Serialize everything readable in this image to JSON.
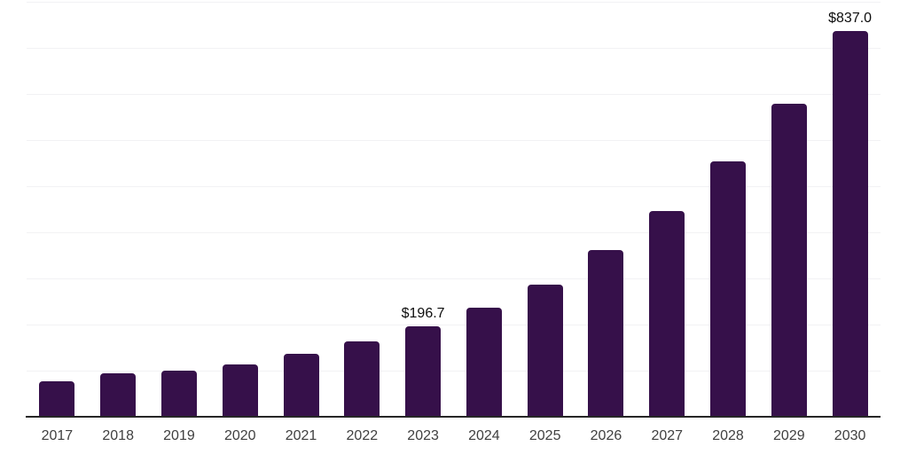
{
  "chart_data": {
    "type": "bar",
    "title": "",
    "xlabel": "",
    "ylabel": "",
    "categories": [
      "2017",
      "2018",
      "2019",
      "2020",
      "2021",
      "2022",
      "2023",
      "2024",
      "2025",
      "2026",
      "2027",
      "2028",
      "2029",
      "2030"
    ],
    "values": [
      77.0,
      94.7,
      100.8,
      113.9,
      136.5,
      163.0,
      196.7,
      236.5,
      287.0,
      362.5,
      445.8,
      554.5,
      678.1,
      837.0
    ],
    "data_labels": {
      "2023": "$196.7",
      "2030": "$837.0"
    },
    "ylim": [
      0,
      900
    ],
    "gridline_step": 100,
    "grid": "on",
    "legend": "none",
    "y_tick_labels_visible": false,
    "bar_color": "#36104a",
    "axis_line_color": "#262626",
    "gridline_color": "#f2f2f4",
    "x_label_color": "#404040",
    "data_label_color": "#0d0d0d"
  }
}
